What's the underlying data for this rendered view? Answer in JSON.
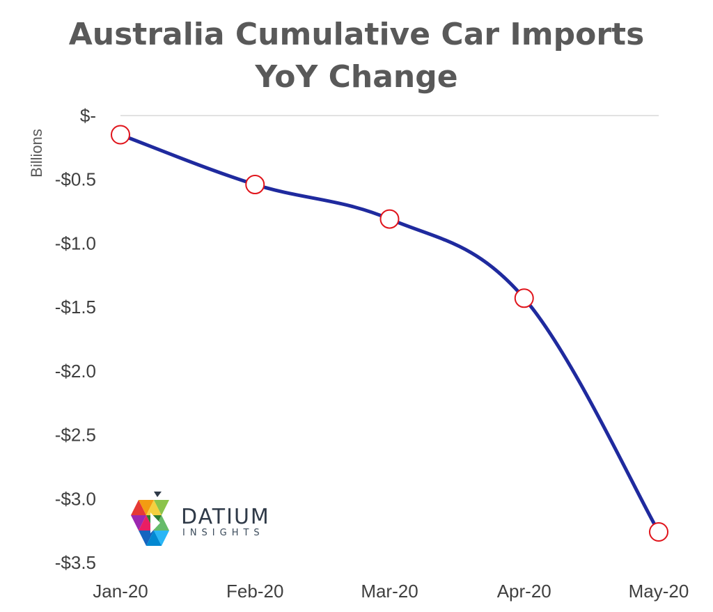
{
  "chart_data": {
    "type": "line",
    "title": [
      "Australia Cumulative Car Imports",
      "YoY Change"
    ],
    "ylabel": "Billions",
    "xlabel": "",
    "categories": [
      "Jan-20",
      "Feb-20",
      "Mar-20",
      "Apr-20",
      "May-20"
    ],
    "series": [
      {
        "values": [
          -0.15,
          -0.54,
          -0.81,
          -1.43,
          -3.26
        ]
      }
    ],
    "ylim": [
      -3.5,
      0
    ],
    "y_ticks": [
      0,
      -0.5,
      -1.0,
      -1.5,
      -2.0,
      -2.5,
      -3.0,
      -3.5
    ],
    "y_tick_labels": [
      "$-",
      "-$0.5",
      "-$1.0",
      "-$1.5",
      "-$2.0",
      "-$2.5",
      "-$3.0",
      "-$3.5"
    ],
    "line_color": "#1f2a9e",
    "marker_stroke": "#e0141b",
    "marker_fill": "#ffffff",
    "gridline_color": "#d9d9d9",
    "grid": false
  },
  "logo": {
    "name": "DATIUM",
    "tagline": "INSIGHTS"
  }
}
